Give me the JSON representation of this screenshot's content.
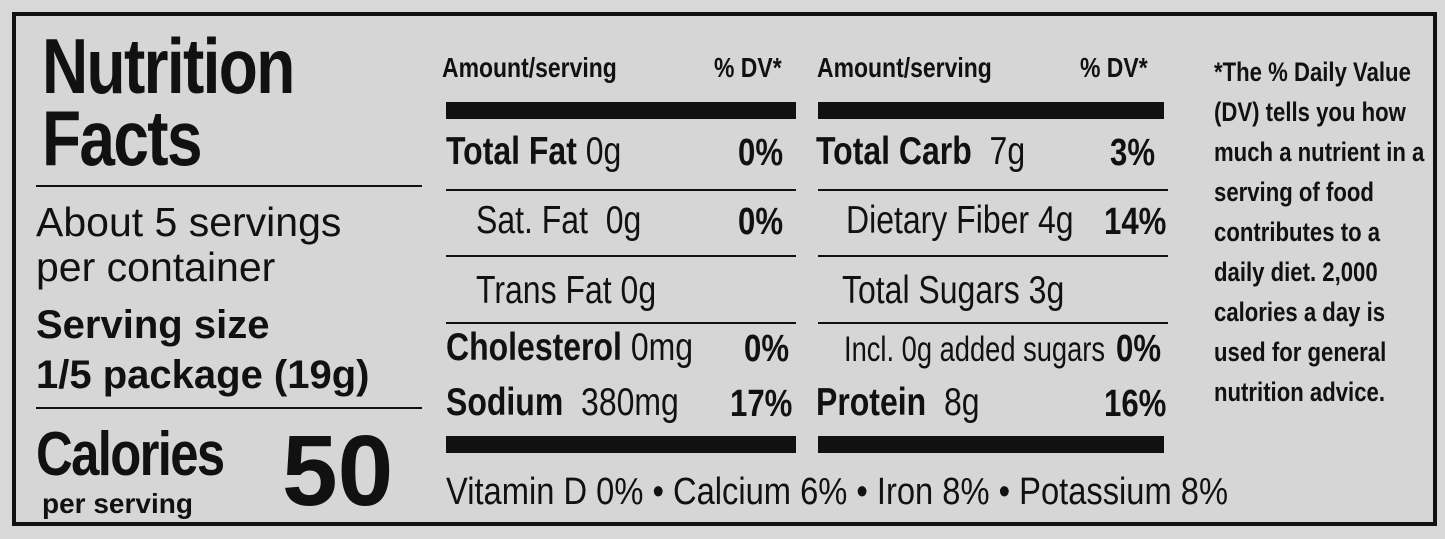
{
  "title_line1": "Nutrition",
  "title_line2": "Facts",
  "servings_line1": "About 5 servings",
  "servings_line2": "per container",
  "serving_size_label": "Serving size",
  "serving_size_value": "1/5 package (19g)",
  "calories_label": "Calories",
  "calories_sub": "per serving",
  "calories_value": "50",
  "left_column": {
    "header_amount": "Amount/serving",
    "header_dv": "% DV*",
    "rows": [
      {
        "name": "Total Fat",
        "amount": "0g",
        "dv": "0%"
      },
      {
        "name": "Sat. Fat",
        "amount": "0g",
        "dv": "0%"
      },
      {
        "name": "Trans Fat",
        "amount": "0g",
        "dv": ""
      },
      {
        "name": "Cholesterol",
        "amount": "0mg",
        "dv": "0%"
      },
      {
        "name": "Sodium",
        "amount": "380mg",
        "dv": "17%"
      }
    ]
  },
  "right_column": {
    "header_amount": "Amount/serving",
    "header_dv": "% DV*",
    "rows": [
      {
        "name": "Total Carb",
        "amount": "7g",
        "dv": "3%"
      },
      {
        "name": "Dietary Fiber",
        "amount": "4g",
        "dv": "14%"
      },
      {
        "name": "Total Sugars",
        "amount": "3g",
        "dv": ""
      },
      {
        "name": "Incl. 0g added sugars",
        "amount": "",
        "dv": "0%"
      },
      {
        "name": "Protein",
        "amount": "8g",
        "dv": "16%"
      }
    ]
  },
  "vitamins": "Vitamin D 0%  •  Calcium 6%  •  Iron 8%  •  Potassium 8%",
  "footnote": "*The % Daily Value (DV) tells you how much a nutrient in a serving of food contributes to a daily diet. 2,000 calories a day is used for general nutrition advice."
}
